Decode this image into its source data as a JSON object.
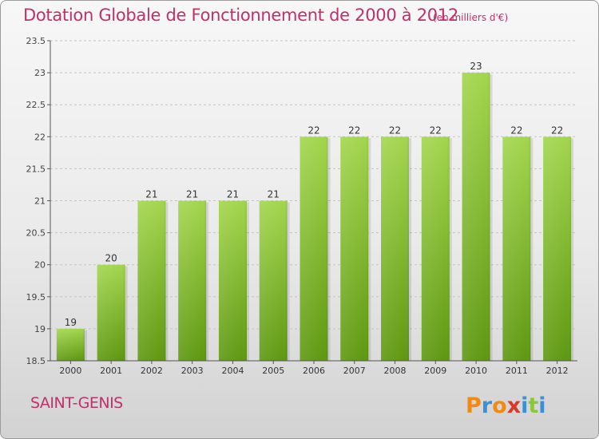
{
  "header": {
    "title": "Dotation Globale de Fonctionnement de 2000 à 2012",
    "unit": "(en milliers d'€)"
  },
  "footer": {
    "commune": "SAINT-GENIS",
    "logo_text": "Proxiti"
  },
  "colors": {
    "title": "#c0306a",
    "bar_light": "#9fd24a",
    "bar_dark": "#5f9a12",
    "grid": "#c4c4c4",
    "axis": "#555555"
  },
  "chart_data": {
    "type": "bar",
    "title": "Dotation Globale de Fonctionnement de 2000 à 2012",
    "subtitle": "(en milliers d'€)",
    "categories": [
      "2000",
      "2001",
      "2002",
      "2003",
      "2004",
      "2005",
      "2006",
      "2007",
      "2008",
      "2009",
      "2010",
      "2011",
      "2012"
    ],
    "values": [
      19,
      20,
      21,
      21,
      21,
      21,
      22,
      22,
      22,
      22,
      23,
      22,
      22
    ],
    "value_labels": [
      "19",
      "20",
      "21",
      "21",
      "21",
      "21",
      "22",
      "22",
      "22",
      "22",
      "23",
      "22",
      "22"
    ],
    "ylim": [
      18.5,
      23.5
    ],
    "yticks": [
      18.5,
      19,
      19.5,
      20,
      20.5,
      21,
      21.5,
      22,
      22.5,
      23,
      23.5
    ],
    "ytick_labels": [
      "18.5",
      "19",
      "19.5",
      "20",
      "20.5",
      "21",
      "21.5",
      "22",
      "22.5",
      "23",
      "23.5"
    ],
    "grid": true,
    "grid_style": "dashed horizontal"
  }
}
